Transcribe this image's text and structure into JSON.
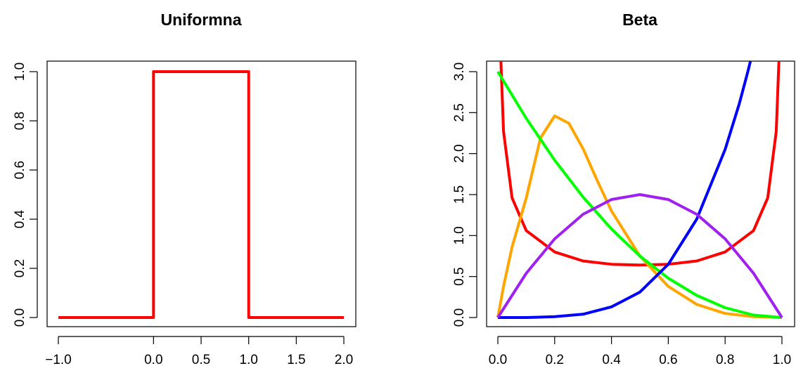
{
  "chart_data": [
    {
      "type": "line",
      "title": "Uniformna",
      "xlabel": "",
      "ylabel": "",
      "xlim": [
        -1.0,
        2.0
      ],
      "ylim": [
        0.0,
        1.0
      ],
      "xticks": [
        "−1.0",
        "0.0",
        "0.5",
        "1.0",
        "1.5",
        "2.0"
      ],
      "yticks": [
        "0.0",
        "0.2",
        "0.4",
        "0.6",
        "0.8",
        "1.0"
      ],
      "series": [
        {
          "color": "#ff0000",
          "x": [
            -1.0,
            0.0,
            0.0,
            1.0,
            1.0,
            2.0
          ],
          "y": [
            0.0,
            0.0,
            1.0,
            1.0,
            0.0,
            0.0
          ]
        }
      ]
    },
    {
      "type": "line",
      "title": "Beta",
      "xlabel": "",
      "ylabel": "",
      "xlim": [
        0.0,
        1.0
      ],
      "ylim": [
        0.0,
        3.0
      ],
      "xticks": [
        "0.0",
        "0.2",
        "0.4",
        "0.6",
        "0.8",
        "1.0"
      ],
      "yticks": [
        "0.0",
        "0.5",
        "1.0",
        "1.5",
        "2.0",
        "2.5",
        "3.0"
      ],
      "series": [
        {
          "color": "#ff0000",
          "x": [
            0.005,
            0.01,
            0.02,
            0.05,
            0.1,
            0.2,
            0.3,
            0.4,
            0.5,
            0.6,
            0.7,
            0.8,
            0.9,
            0.95,
            0.98,
            0.99,
            0.995
          ],
          "y": [
            4.52,
            3.2,
            2.27,
            1.46,
            1.06,
            0.8,
            0.69,
            0.65,
            0.64,
            0.65,
            0.69,
            0.8,
            1.06,
            1.46,
            2.27,
            3.2,
            4.52
          ]
        },
        {
          "color": "#ffa500",
          "x": [
            0.0,
            0.02,
            0.05,
            0.1,
            0.15,
            0.2,
            0.25,
            0.3,
            0.35,
            0.4,
            0.5,
            0.6,
            0.7,
            0.8,
            0.9,
            1.0
          ],
          "y": [
            0.0,
            0.38,
            0.86,
            1.46,
            2.19,
            2.46,
            2.37,
            2.06,
            1.67,
            1.3,
            0.75,
            0.38,
            0.16,
            0.05,
            0.01,
            0.0
          ]
        },
        {
          "color": "#00ff00",
          "x": [
            0.0,
            0.1,
            0.2,
            0.3,
            0.4,
            0.5,
            0.6,
            0.7,
            0.8,
            0.9,
            1.0
          ],
          "y": [
            3.0,
            2.43,
            1.92,
            1.47,
            1.08,
            0.75,
            0.48,
            0.27,
            0.12,
            0.03,
            0.0
          ]
        },
        {
          "color": "#0000ff",
          "x": [
            0.0,
            0.1,
            0.2,
            0.3,
            0.4,
            0.5,
            0.6,
            0.7,
            0.8,
            0.85,
            0.88,
            0.9
          ],
          "y": [
            0.0,
            0.0,
            0.01,
            0.04,
            0.13,
            0.31,
            0.65,
            1.2,
            2.05,
            2.61,
            3.0,
            3.28
          ]
        },
        {
          "color": "#a020f0",
          "x": [
            0.0,
            0.1,
            0.2,
            0.3,
            0.4,
            0.5,
            0.6,
            0.7,
            0.8,
            0.9,
            1.0
          ],
          "y": [
            0.0,
            0.54,
            0.96,
            1.26,
            1.44,
            1.5,
            1.44,
            1.26,
            0.96,
            0.54,
            0.0
          ]
        }
      ]
    }
  ]
}
